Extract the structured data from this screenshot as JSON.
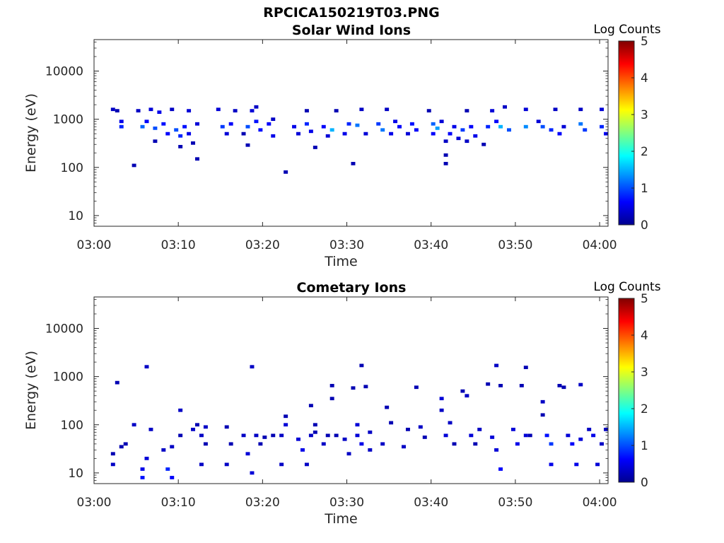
{
  "figure_title": "RPCICA150219T03.PNG",
  "colormap_stops": [
    "#00008f",
    "#0000ff",
    "#0080ff",
    "#00ffff",
    "#80ff80",
    "#ffff00",
    "#ff8000",
    "#ff0000",
    "#800000"
  ],
  "chart_data": [
    {
      "type": "heatmap",
      "title": "Solar Wind Ions",
      "xlabel": "Time",
      "ylabel": "Energy (eV)",
      "x_ticks": [
        "03:00",
        "03:10",
        "03:20",
        "03:30",
        "03:40",
        "03:50",
        "04:00"
      ],
      "x_range_min": [
        0,
        61
      ],
      "y_scale": "log",
      "y_ticks": [
        "10",
        "100",
        "1000",
        "10000"
      ],
      "y_range": [
        6,
        45000
      ],
      "colorbar_label": "Log Counts",
      "colorbar_ticks": [
        "0",
        "1",
        "2",
        "3",
        "4",
        "5"
      ],
      "colorbar_range": [
        0,
        5
      ],
      "cells": [
        [
          2,
          1600,
          0.3
        ],
        [
          2.5,
          1500,
          0.2
        ],
        [
          3,
          700,
          0.8
        ],
        [
          3,
          900,
          0.5
        ],
        [
          4.5,
          110,
          0.2
        ],
        [
          5,
          1500,
          0.3
        ],
        [
          5.5,
          700,
          1.1
        ],
        [
          6,
          900,
          0.6
        ],
        [
          6.5,
          1600,
          0.4
        ],
        [
          7,
          650,
          1.0
        ],
        [
          7,
          350,
          0.2
        ],
        [
          7.5,
          1400,
          0.5
        ],
        [
          8,
          800,
          0.7
        ],
        [
          8.5,
          500,
          0.6
        ],
        [
          9,
          1600,
          0.3
        ],
        [
          9.5,
          600,
          1.0
        ],
        [
          10,
          450,
          0.8
        ],
        [
          10,
          270,
          0.2
        ],
        [
          10.5,
          700,
          0.7
        ],
        [
          11,
          500,
          0.5
        ],
        [
          11,
          1500,
          0.4
        ],
        [
          11.5,
          320,
          0.2
        ],
        [
          12,
          150,
          0.2
        ],
        [
          12,
          800,
          0.4
        ],
        [
          14.5,
          1600,
          0.4
        ],
        [
          15,
          700,
          0.9
        ],
        [
          15.5,
          500,
          0.4
        ],
        [
          16,
          800,
          0.6
        ],
        [
          16.5,
          1500,
          0.3
        ],
        [
          17.5,
          500,
          0.2
        ],
        [
          18,
          700,
          1.0
        ],
        [
          18,
          290,
          0.2
        ],
        [
          18.5,
          1500,
          0.4
        ],
        [
          19,
          900,
          0.7
        ],
        [
          19,
          1800,
          0.3
        ],
        [
          19.5,
          600,
          0.7
        ],
        [
          20.5,
          800,
          0.6
        ],
        [
          21,
          450,
          0.5
        ],
        [
          21,
          1000,
          0.3
        ],
        [
          22.5,
          80,
          0.2
        ],
        [
          23.5,
          700,
          0.5
        ],
        [
          24,
          500,
          0.4
        ],
        [
          25,
          800,
          0.8
        ],
        [
          25,
          1500,
          0.2
        ],
        [
          25.5,
          560,
          0.5
        ],
        [
          26,
          260,
          0.2
        ],
        [
          27,
          700,
          0.6
        ],
        [
          27.5,
          450,
          0.4
        ],
        [
          28,
          600,
          1.5
        ],
        [
          28.5,
          1500,
          0.2
        ],
        [
          29.5,
          500,
          0.5
        ],
        [
          30,
          800,
          0.8
        ],
        [
          30.5,
          120,
          0.2
        ],
        [
          31,
          750,
          1.2
        ],
        [
          31.5,
          1600,
          0.3
        ],
        [
          32,
          500,
          0.4
        ],
        [
          33.5,
          800,
          0.9
        ],
        [
          34,
          600,
          1.2
        ],
        [
          34.5,
          1600,
          0.3
        ],
        [
          35,
          500,
          0.5
        ],
        [
          35.5,
          900,
          0.5
        ],
        [
          36,
          700,
          0.6
        ],
        [
          37,
          500,
          0.4
        ],
        [
          37.5,
          800,
          0.7
        ],
        [
          38,
          600,
          0.6
        ],
        [
          39.5,
          1500,
          0.2
        ],
        [
          40,
          800,
          1.1
        ],
        [
          40,
          500,
          0.6
        ],
        [
          40.5,
          650,
          1.4
        ],
        [
          41,
          900,
          0.4
        ],
        [
          41.5,
          350,
          0.3
        ],
        [
          41.5,
          180,
          0.2
        ],
        [
          41.5,
          120,
          0.2
        ],
        [
          42,
          500,
          0.6
        ],
        [
          42.5,
          700,
          0.5
        ],
        [
          43,
          400,
          0.4
        ],
        [
          43.5,
          600,
          0.9
        ],
        [
          44,
          1500,
          0.2
        ],
        [
          44,
          350,
          0.3
        ],
        [
          44.5,
          700,
          0.6
        ],
        [
          45,
          450,
          0.5
        ],
        [
          46,
          300,
          0.2
        ],
        [
          46.5,
          700,
          0.8
        ],
        [
          47,
          1500,
          0.4
        ],
        [
          47.5,
          900,
          0.6
        ],
        [
          48,
          700,
          1.5
        ],
        [
          48.5,
          1800,
          0.3
        ],
        [
          49,
          600,
          1.0
        ],
        [
          51,
          700,
          1.3
        ],
        [
          51,
          1600,
          0.4
        ],
        [
          52.5,
          900,
          0.4
        ],
        [
          53,
          700,
          1.0
        ],
        [
          54,
          600,
          0.8
        ],
        [
          54.5,
          1600,
          0.3
        ],
        [
          55,
          500,
          0.6
        ],
        [
          55.5,
          700,
          0.4
        ],
        [
          57.5,
          800,
          1.2
        ],
        [
          57.5,
          1600,
          0.3
        ],
        [
          58,
          600,
          0.9
        ],
        [
          60,
          700,
          0.8
        ],
        [
          60,
          1600,
          0.4
        ],
        [
          60.5,
          500,
          0.6
        ]
      ]
    },
    {
      "type": "heatmap",
      "title": "Cometary Ions",
      "xlabel": "Time",
      "ylabel": "Energy (eV)",
      "x_ticks": [
        "03:00",
        "03:10",
        "03:20",
        "03:30",
        "03:40",
        "03:50",
        "04:00"
      ],
      "x_range_min": [
        0,
        61
      ],
      "y_scale": "log",
      "y_ticks": [
        "10",
        "100",
        "1000",
        "10000"
      ],
      "y_range": [
        6,
        45000
      ],
      "colorbar_label": "Log Counts",
      "colorbar_ticks": [
        "0",
        "1",
        "2",
        "3",
        "4",
        "5"
      ],
      "colorbar_range": [
        0,
        5
      ],
      "cells": [
        [
          2,
          25,
          0.2
        ],
        [
          2,
          15,
          0.3
        ],
        [
          2.5,
          750,
          0.2
        ],
        [
          3,
          35,
          0.2
        ],
        [
          3.5,
          40,
          0.2
        ],
        [
          4.5,
          100,
          0.3
        ],
        [
          5.5,
          12,
          0.5
        ],
        [
          5.5,
          8,
          0.7
        ],
        [
          6,
          1600,
          0.3
        ],
        [
          6,
          20,
          0.4
        ],
        [
          6.5,
          80,
          0.3
        ],
        [
          8,
          30,
          0.3
        ],
        [
          8.5,
          12,
          0.8
        ],
        [
          9,
          8,
          0.6
        ],
        [
          9,
          35,
          0.3
        ],
        [
          10,
          200,
          0.3
        ],
        [
          10,
          60,
          0.2
        ],
        [
          11.5,
          80,
          0.3
        ],
        [
          12,
          100,
          0.2
        ],
        [
          12.5,
          60,
          0.3
        ],
        [
          12.5,
          15,
          0.3
        ],
        [
          13,
          90,
          0.3
        ],
        [
          13,
          40,
          0.2
        ],
        [
          15.5,
          90,
          0.2
        ],
        [
          15.5,
          15,
          0.3
        ],
        [
          16,
          40,
          0.2
        ],
        [
          17.5,
          60,
          0.3
        ],
        [
          18,
          25,
          0.4
        ],
        [
          18.5,
          10,
          0.4
        ],
        [
          18.5,
          1600,
          0.3
        ],
        [
          19,
          60,
          0.3
        ],
        [
          19.5,
          40,
          0.2
        ],
        [
          20,
          55,
          0.2
        ],
        [
          21,
          60,
          0.2
        ],
        [
          22,
          60,
          0.3
        ],
        [
          22,
          15,
          0.3
        ],
        [
          22.5,
          100,
          0.4
        ],
        [
          22.5,
          150,
          0.2
        ],
        [
          24,
          50,
          0.4
        ],
        [
          24.5,
          30,
          0.5
        ],
        [
          25,
          15,
          0.3
        ],
        [
          25.5,
          60,
          0.3
        ],
        [
          25.5,
          250,
          0.2
        ],
        [
          26,
          100,
          0.2
        ],
        [
          26,
          70,
          0.2
        ],
        [
          27,
          40,
          0.3
        ],
        [
          27.5,
          60,
          0.2
        ],
        [
          28,
          350,
          0.2
        ],
        [
          28,
          650,
          0.2
        ],
        [
          28.5,
          60,
          0.2
        ],
        [
          29.5,
          50,
          0.3
        ],
        [
          30,
          25,
          0.3
        ],
        [
          30.5,
          580,
          0.2
        ],
        [
          31,
          100,
          0.4
        ],
        [
          31,
          60,
          0.4
        ],
        [
          31.5,
          1700,
          0.2
        ],
        [
          31.5,
          40,
          0.5
        ],
        [
          32,
          620,
          0.2
        ],
        [
          32.5,
          70,
          0.3
        ],
        [
          32.5,
          30,
          0.3
        ],
        [
          34,
          40,
          0.3
        ],
        [
          34.5,
          230,
          0.2
        ],
        [
          35,
          110,
          0.2
        ],
        [
          36.5,
          35,
          0.3
        ],
        [
          37,
          80,
          0.2
        ],
        [
          38,
          600,
          0.2
        ],
        [
          38.5,
          90,
          0.3
        ],
        [
          39,
          55,
          0.2
        ],
        [
          41,
          350,
          0.4
        ],
        [
          41,
          200,
          0.3
        ],
        [
          41.5,
          60,
          0.4
        ],
        [
          42,
          110,
          0.3
        ],
        [
          42.5,
          40,
          0.2
        ],
        [
          43.5,
          500,
          0.2
        ],
        [
          44,
          400,
          0.3
        ],
        [
          44.5,
          60,
          0.4
        ],
        [
          45,
          40,
          0.2
        ],
        [
          45.5,
          80,
          0.3
        ],
        [
          46.5,
          700,
          0.2
        ],
        [
          47,
          55,
          0.4
        ],
        [
          47.5,
          1700,
          0.3
        ],
        [
          47.5,
          30,
          0.4
        ],
        [
          48,
          12,
          0.6
        ],
        [
          48,
          650,
          0.2
        ],
        [
          49.5,
          80,
          0.4
        ],
        [
          50,
          40,
          0.5
        ],
        [
          50.5,
          650,
          0.2
        ],
        [
          51,
          60,
          0.4
        ],
        [
          51,
          1550,
          0.2
        ],
        [
          51.5,
          60,
          0.2
        ],
        [
          53,
          300,
          0.3
        ],
        [
          53,
          160,
          0.2
        ],
        [
          53.5,
          60,
          0.7
        ],
        [
          54,
          40,
          0.9
        ],
        [
          54,
          15,
          0.5
        ],
        [
          55,
          650,
          0.2
        ],
        [
          55.5,
          600,
          0.2
        ],
        [
          56,
          60,
          0.4
        ],
        [
          56.5,
          40,
          0.6
        ],
        [
          57,
          15,
          0.5
        ],
        [
          57.5,
          50,
          0.4
        ],
        [
          57.5,
          680,
          0.3
        ],
        [
          58.5,
          80,
          0.3
        ],
        [
          59,
          60,
          0.5
        ],
        [
          59.5,
          15,
          0.4
        ],
        [
          60,
          40,
          0.3
        ],
        [
          60.5,
          80,
          0.3
        ]
      ]
    }
  ]
}
